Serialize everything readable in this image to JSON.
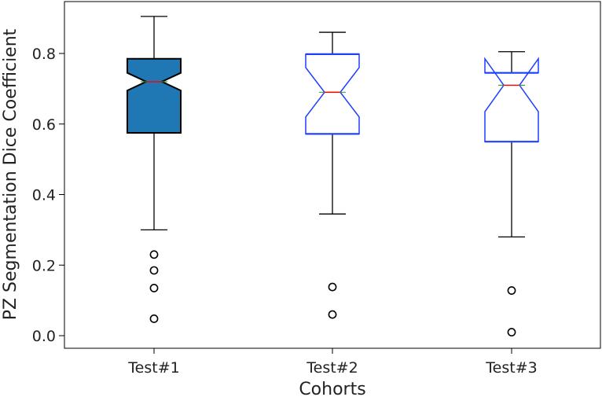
{
  "chart_data": {
    "type": "boxplot",
    "notched": true,
    "xlabel": "Cohorts",
    "ylabel": "PZ Segmentation Dice Coefficient",
    "categories": [
      "Test#1",
      "Test#2",
      "Test#3"
    ],
    "yticks": [
      0.0,
      0.2,
      0.4,
      0.6,
      0.8
    ],
    "ylim": [
      -0.04,
      0.95
    ],
    "boxes": [
      {
        "label": "Test#1",
        "filled": true,
        "fill_color": "#1f77b4",
        "edge_color": "#000000",
        "whisker_low": 0.3,
        "q1": 0.575,
        "median": 0.72,
        "mean": 0.72,
        "q3": 0.785,
        "whisker_high": 0.905,
        "notch_low": 0.695,
        "notch_high": 0.745,
        "outliers": [
          0.23,
          0.185,
          0.135,
          0.048
        ]
      },
      {
        "label": "Test#2",
        "filled": false,
        "fill_color": "#ffffff",
        "edge_color": "#1f3fff",
        "whisker_low": 0.345,
        "q1": 0.572,
        "median": 0.69,
        "mean": 0.69,
        "q3": 0.798,
        "whisker_high": 0.86,
        "notch_low": 0.62,
        "notch_high": 0.76,
        "outliers": [
          0.138,
          0.06
        ]
      },
      {
        "label": "Test#3",
        "filled": false,
        "fill_color": "#ffffff",
        "edge_color": "#1f3fff",
        "whisker_low": 0.28,
        "q1": 0.55,
        "median": 0.71,
        "mean": 0.71,
        "q3": 0.745,
        "whisker_high": 0.805,
        "notch_low": 0.635,
        "notch_high": 0.785,
        "outliers": [
          0.128,
          0.01
        ]
      }
    ],
    "colors": {
      "median": "#ff0000",
      "mean_line": "#2ca02c",
      "whisker": "#000000"
    },
    "grid": false
  }
}
